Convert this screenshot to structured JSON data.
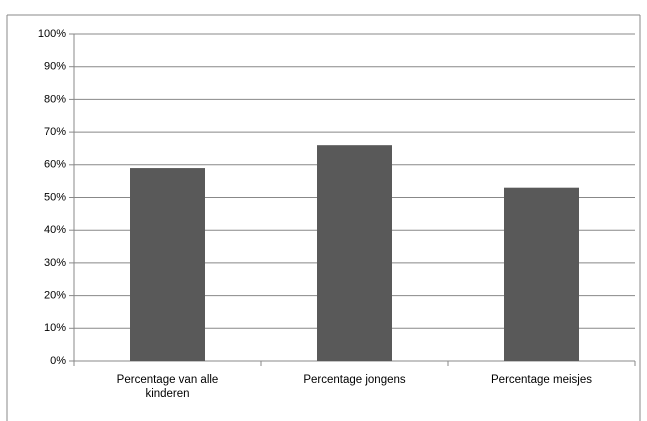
{
  "chart_data": {
    "type": "bar",
    "categories": [
      "Percentage van alle kinderen",
      "Percentage jongens",
      "Percentage meisjes"
    ],
    "values": [
      59,
      66,
      53
    ],
    "color": "#595959",
    "ylim": [
      0,
      100
    ],
    "yticks": [
      {
        "value": 0,
        "label": "0%"
      },
      {
        "value": 10,
        "label": "10%"
      },
      {
        "value": 20,
        "label": "20%"
      },
      {
        "value": 30,
        "label": "30%"
      },
      {
        "value": 40,
        "label": "40%"
      },
      {
        "value": 50,
        "label": "50%"
      },
      {
        "value": 60,
        "label": "60%"
      },
      {
        "value": 70,
        "label": "70%"
      },
      {
        "value": 80,
        "label": "80%"
      },
      {
        "value": 90,
        "label": "90%"
      },
      {
        "value": 100,
        "label": "100%"
      }
    ],
    "grid": true
  }
}
